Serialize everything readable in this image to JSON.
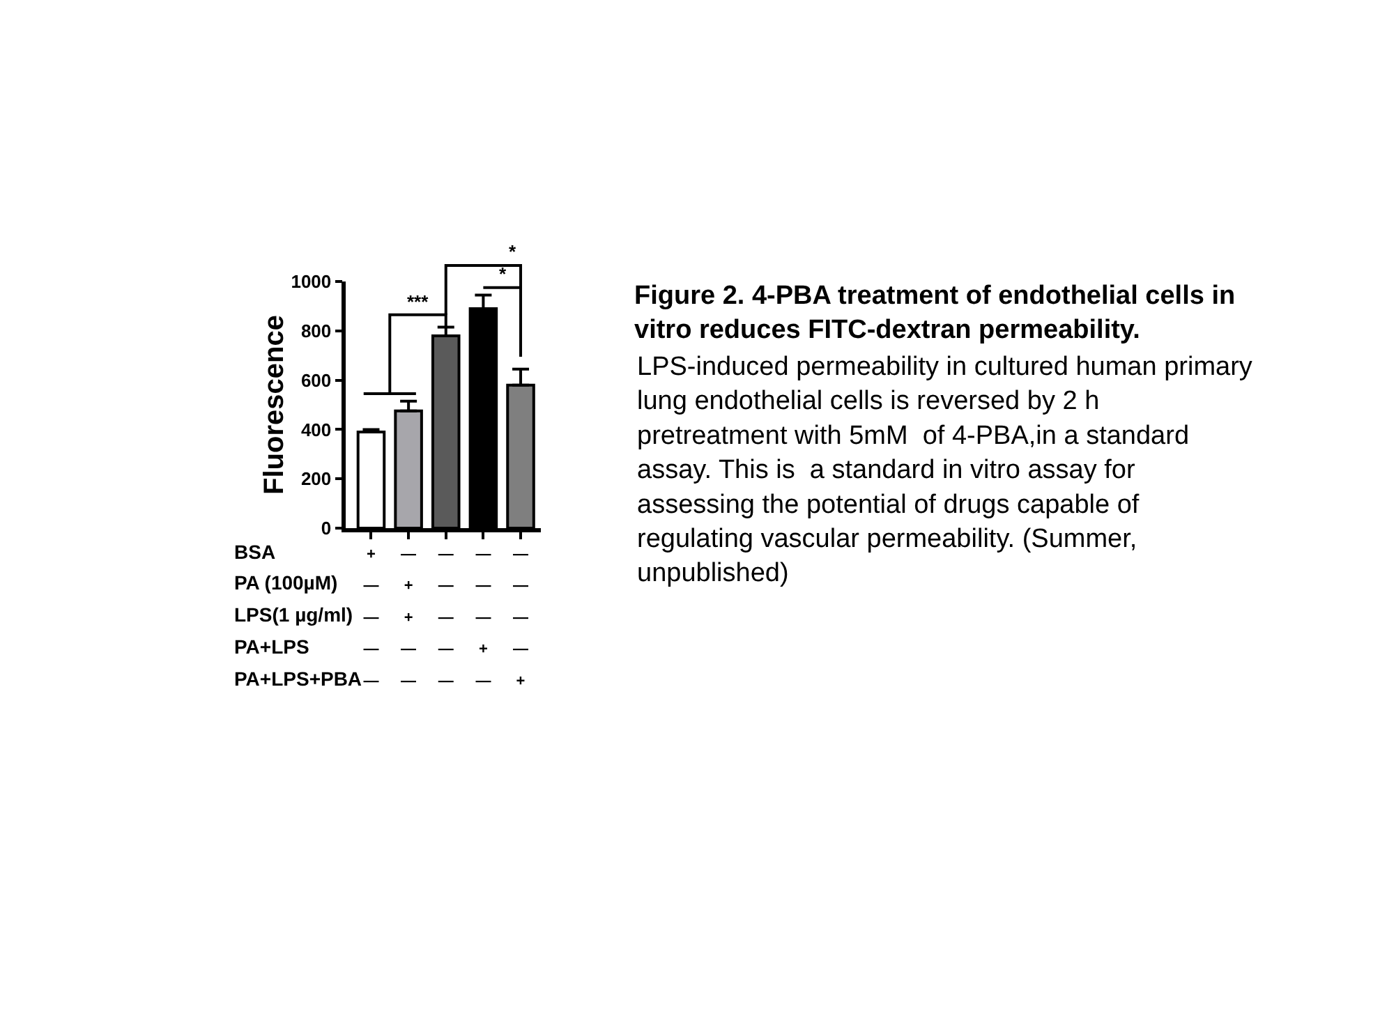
{
  "chart_data": {
    "type": "bar",
    "title": "Figure 2. 4-PBA treatment of endothelial cells in vitro reduces FITC-dextran permeability.",
    "ylabel": "Fluorescence",
    "categories": [
      "+\n—\n—\n—\n—",
      "—\n+\n+\n—\n—",
      "—\n—\n—\n—\n—",
      "—\n—\n—\n+\n—",
      "—\n—\n—\n—\n+"
    ],
    "values": [
      390,
      475,
      780,
      890,
      580
    ],
    "colors": [
      "#ffffff",
      "#a7a6ab",
      "#5a5a5a",
      "#000000",
      "#7f7f7f"
    ],
    "errors": [
      [
        390,
        400
      ],
      [
        475,
        515
      ],
      [
        780,
        815
      ],
      [
        890,
        945
      ],
      [
        580,
        645
      ]
    ],
    "ylim": [
      0,
      1000
    ],
    "yticks": [
      0,
      200,
      400,
      600,
      800,
      1000
    ],
    "annotations": [
      "***",
      "*",
      "*",
      "BSA",
      "PA (100µM)",
      "LPS(1 µg/ml)",
      "PA+LPS",
      "PA+LPS+PBA",
      "LPS-induced permeability in cultured human primary lung endothelial cells is reversed by 2 h pretreatment with 5mM  of 4-PBA,in a standard assay. This is  a standard in vitro assay for assessing the potential of drugs capable of regulating vascular permeability. (Summer, unpublished)"
    ]
  }
}
